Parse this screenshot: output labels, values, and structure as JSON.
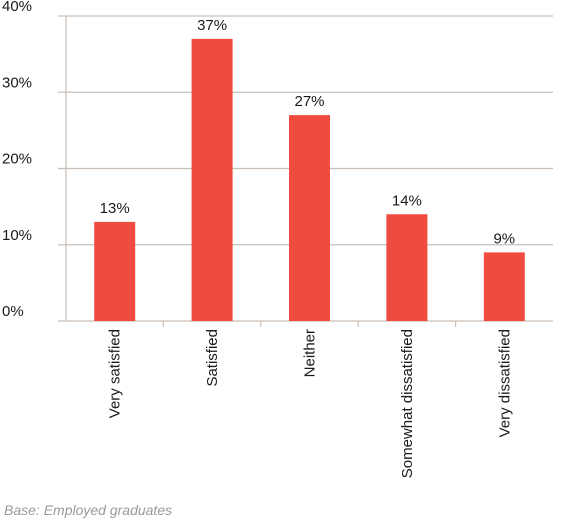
{
  "chart_data": {
    "type": "bar",
    "categories": [
      "Very satisfied",
      "Satisfied",
      "Neither",
      "Somewhat dissatisfied",
      "Very dissatisfied"
    ],
    "values": [
      13,
      37,
      27,
      14,
      9
    ],
    "value_labels": [
      "13%",
      "37%",
      "27%",
      "14%",
      "9%"
    ],
    "yticks": [
      0,
      10,
      20,
      30,
      40
    ],
    "ytick_labels": [
      "0%",
      "10%",
      "20%",
      "30%",
      "40%"
    ],
    "ylim": [
      0,
      40
    ],
    "grid": true,
    "bar_color": "#f04b3f",
    "grid_color": "#c9bfb6"
  },
  "footnote": "Base: Employed graduates"
}
